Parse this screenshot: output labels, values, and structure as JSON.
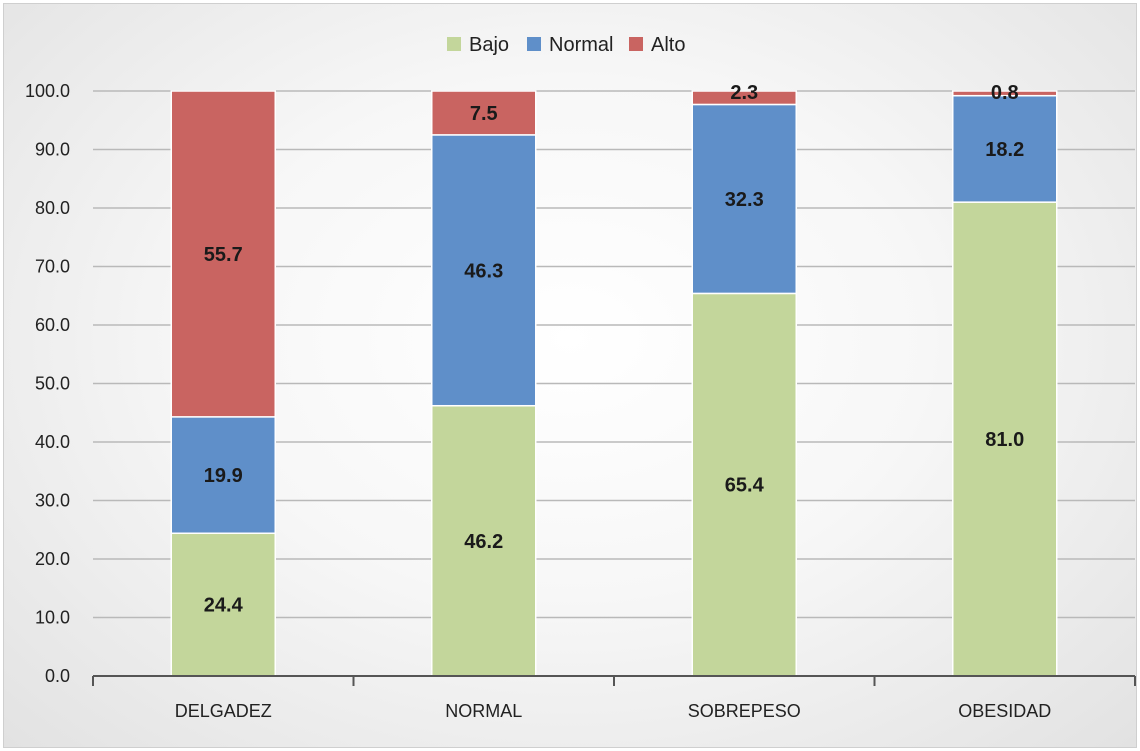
{
  "chart_data": {
    "type": "bar",
    "stacked": true,
    "categories": [
      "DELGADEZ",
      "NORMAL",
      "SOBREPESO",
      "OBESIDAD"
    ],
    "series": [
      {
        "name": "Bajo",
        "color": "#c3d69b",
        "values": [
          24.4,
          46.2,
          65.4,
          81.0
        ]
      },
      {
        "name": "Normal",
        "color": "#5f8fc9",
        "values": [
          19.9,
          46.3,
          32.3,
          18.2
        ]
      },
      {
        "name": "Alto",
        "color": "#c96461",
        "values": [
          55.7,
          7.5,
          2.3,
          0.8
        ]
      }
    ],
    "ylim": [
      0,
      100
    ],
    "yticks": [
      "0.0",
      "10.0",
      "20.0",
      "30.0",
      "40.0",
      "50.0",
      "60.0",
      "70.0",
      "80.0",
      "90.0",
      "100.0"
    ],
    "grid": true,
    "legend": "top-center",
    "title": "",
    "xlabel": "",
    "ylabel": ""
  }
}
